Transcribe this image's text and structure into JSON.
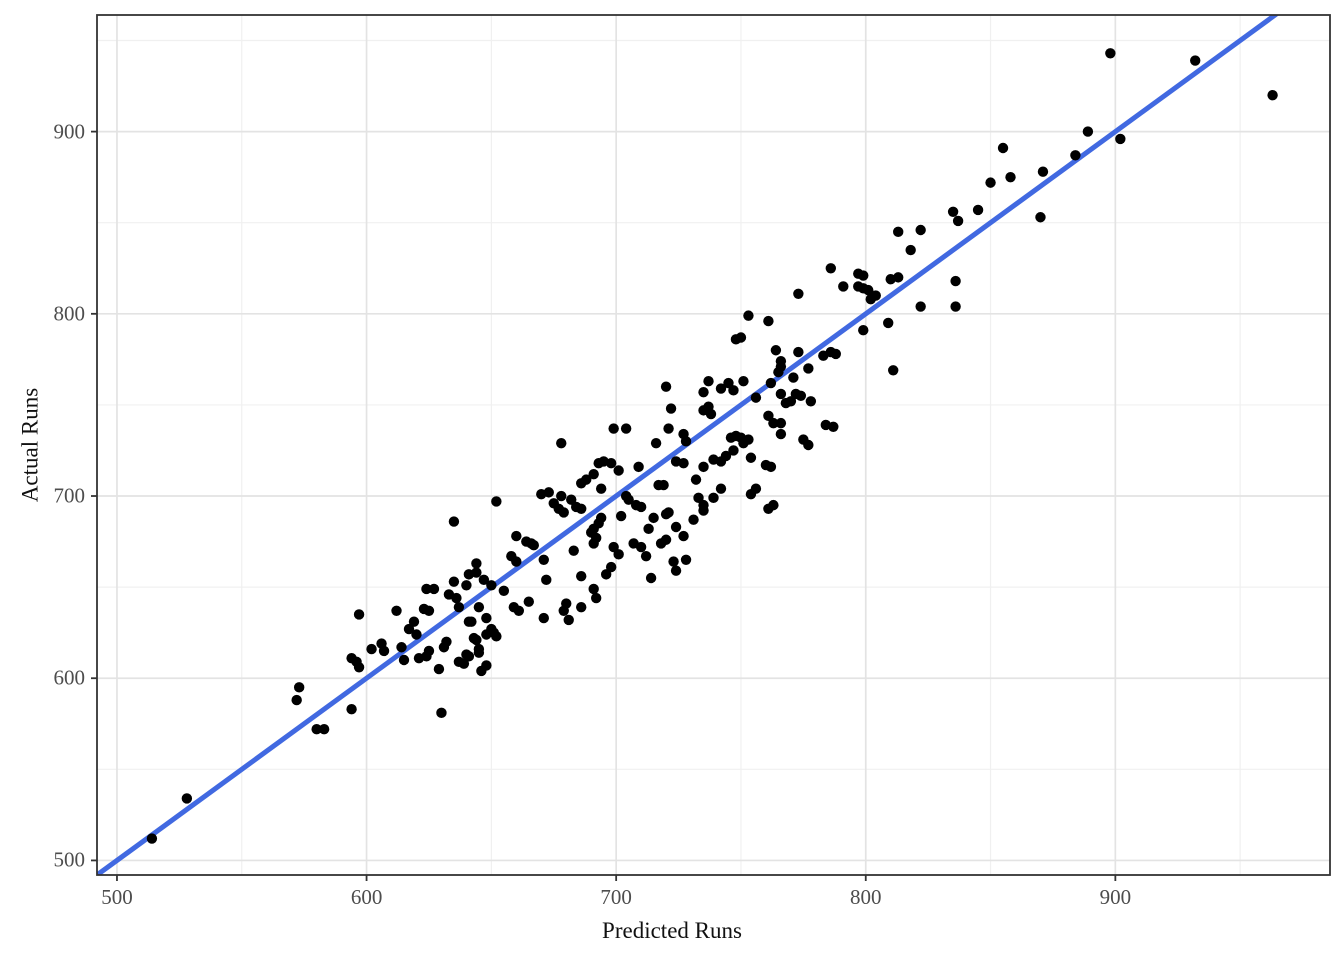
{
  "chart_data": {
    "type": "scatter",
    "title": "",
    "xlabel": "Predicted Runs",
    "ylabel": "Actual Runs",
    "xlim": [
      492,
      986
    ],
    "ylim": [
      492,
      964
    ],
    "x_ticks": [
      500,
      600,
      700,
      800,
      900
    ],
    "y_ticks": [
      500,
      600,
      700,
      800,
      900
    ],
    "x_minor_ticks": [
      550,
      650,
      750,
      850,
      950
    ],
    "y_minor_ticks": [
      550,
      650,
      750,
      850,
      950
    ],
    "grid": "major+minor",
    "legend": "none",
    "colors": {
      "point": "#000000",
      "line": "#4169E1",
      "major_grid": "#e3e3e3",
      "minor_grid": "#f0f0f0",
      "panel_border": "#333333",
      "tick_mark": "#333333",
      "tick_text": "#4d4d4d",
      "background": "#ffffff"
    },
    "reference_line": {
      "type": "abline",
      "intercept": 0,
      "slope": 1
    },
    "points": [
      [
        514,
        512
      ],
      [
        528,
        534
      ],
      [
        572,
        588
      ],
      [
        573,
        595
      ],
      [
        580,
        572
      ],
      [
        583,
        572
      ],
      [
        594,
        583
      ],
      [
        594,
        611
      ],
      [
        596,
        609
      ],
      [
        597,
        606
      ],
      [
        597,
        635
      ],
      [
        602,
        616
      ],
      [
        606,
        619
      ],
      [
        607,
        615
      ],
      [
        612,
        637
      ],
      [
        614,
        617
      ],
      [
        615,
        610
      ],
      [
        617,
        627
      ],
      [
        619,
        631
      ],
      [
        620,
        624
      ],
      [
        621,
        611
      ],
      [
        623,
        638
      ],
      [
        624,
        649
      ],
      [
        624,
        612
      ],
      [
        625,
        637
      ],
      [
        625,
        615
      ],
      [
        627,
        649
      ],
      [
        629,
        605
      ],
      [
        630,
        581
      ],
      [
        631,
        617
      ],
      [
        632,
        620
      ],
      [
        633,
        646
      ],
      [
        635,
        653
      ],
      [
        635,
        686
      ],
      [
        636,
        644
      ],
      [
        637,
        639
      ],
      [
        637,
        609
      ],
      [
        639,
        608
      ],
      [
        640,
        613
      ],
      [
        640,
        651
      ],
      [
        641,
        657
      ],
      [
        641,
        631
      ],
      [
        641,
        612
      ],
      [
        642,
        631
      ],
      [
        643,
        622
      ],
      [
        644,
        663
      ],
      [
        644,
        658
      ],
      [
        644,
        621
      ],
      [
        645,
        639
      ],
      [
        645,
        616
      ],
      [
        645,
        614
      ],
      [
        646,
        604
      ],
      [
        647,
        654
      ],
      [
        648,
        633
      ],
      [
        648,
        624
      ],
      [
        648,
        607
      ],
      [
        650,
        651
      ],
      [
        650,
        627
      ],
      [
        651,
        625
      ],
      [
        652,
        623
      ],
      [
        652,
        697
      ],
      [
        655,
        648
      ],
      [
        658,
        667
      ],
      [
        659,
        639
      ],
      [
        660,
        664
      ],
      [
        660,
        678
      ],
      [
        661,
        637
      ],
      [
        664,
        675
      ],
      [
        665,
        642
      ],
      [
        666,
        674
      ],
      [
        667,
        673
      ],
      [
        670,
        701
      ],
      [
        671,
        665
      ],
      [
        671,
        633
      ],
      [
        672,
        654
      ],
      [
        673,
        702
      ],
      [
        675,
        696
      ],
      [
        677,
        693
      ],
      [
        678,
        700
      ],
      [
        678,
        729
      ],
      [
        679,
        691
      ],
      [
        679,
        637
      ],
      [
        680,
        641
      ],
      [
        681,
        632
      ],
      [
        682,
        698
      ],
      [
        683,
        670
      ],
      [
        684,
        694
      ],
      [
        686,
        707
      ],
      [
        686,
        693
      ],
      [
        686,
        656
      ],
      [
        686,
        639
      ],
      [
        688,
        709
      ],
      [
        690,
        680
      ],
      [
        691,
        712
      ],
      [
        691,
        682
      ],
      [
        691,
        674
      ],
      [
        691,
        649
      ],
      [
        692,
        677
      ],
      [
        692,
        644
      ],
      [
        693,
        718
      ],
      [
        693,
        685
      ],
      [
        694,
        704
      ],
      [
        694,
        688
      ],
      [
        695,
        719
      ],
      [
        696,
        657
      ],
      [
        698,
        718
      ],
      [
        698,
        661
      ],
      [
        699,
        737
      ],
      [
        699,
        672
      ],
      [
        701,
        714
      ],
      [
        701,
        668
      ],
      [
        702,
        689
      ],
      [
        704,
        737
      ],
      [
        704,
        700
      ],
      [
        705,
        698
      ],
      [
        707,
        674
      ],
      [
        708,
        695
      ],
      [
        709,
        716
      ],
      [
        710,
        694
      ],
      [
        710,
        672
      ],
      [
        712,
        667
      ],
      [
        713,
        682
      ],
      [
        714,
        655
      ],
      [
        715,
        688
      ],
      [
        716,
        729
      ],
      [
        717,
        706
      ],
      [
        718,
        674
      ],
      [
        719,
        706
      ],
      [
        720,
        760
      ],
      [
        720,
        690
      ],
      [
        720,
        676
      ],
      [
        721,
        737
      ],
      [
        721,
        691
      ],
      [
        722,
        748
      ],
      [
        723,
        664
      ],
      [
        724,
        719
      ],
      [
        724,
        683
      ],
      [
        724,
        659
      ],
      [
        727,
        734
      ],
      [
        727,
        718
      ],
      [
        727,
        678
      ],
      [
        728,
        730
      ],
      [
        728,
        665
      ],
      [
        731,
        687
      ],
      [
        732,
        709
      ],
      [
        733,
        699
      ],
      [
        735,
        757
      ],
      [
        735,
        747
      ],
      [
        735,
        716
      ],
      [
        735,
        695
      ],
      [
        735,
        692
      ],
      [
        737,
        763
      ],
      [
        737,
        749
      ],
      [
        738,
        745
      ],
      [
        739,
        720
      ],
      [
        739,
        699
      ],
      [
        742,
        759
      ],
      [
        742,
        719
      ],
      [
        742,
        704
      ],
      [
        744,
        722
      ],
      [
        745,
        762
      ],
      [
        746,
        732
      ],
      [
        747,
        758
      ],
      [
        747,
        725
      ],
      [
        748,
        733
      ],
      [
        748,
        786
      ],
      [
        750,
        787
      ],
      [
        750,
        732
      ],
      [
        751,
        763
      ],
      [
        751,
        729
      ],
      [
        753,
        799
      ],
      [
        753,
        731
      ],
      [
        754,
        721
      ],
      [
        754,
        701
      ],
      [
        756,
        754
      ],
      [
        756,
        704
      ],
      [
        760,
        717
      ],
      [
        761,
        796
      ],
      [
        761,
        744
      ],
      [
        761,
        693
      ],
      [
        762,
        762
      ],
      [
        762,
        716
      ],
      [
        763,
        740
      ],
      [
        763,
        695
      ],
      [
        764,
        780
      ],
      [
        765,
        768
      ],
      [
        766,
        774
      ],
      [
        766,
        771
      ],
      [
        766,
        756
      ],
      [
        766,
        740
      ],
      [
        766,
        734
      ],
      [
        768,
        751
      ],
      [
        770,
        752
      ],
      [
        771,
        765
      ],
      [
        772,
        756
      ],
      [
        773,
        811
      ],
      [
        773,
        779
      ],
      [
        774,
        755
      ],
      [
        775,
        731
      ],
      [
        777,
        770
      ],
      [
        777,
        728
      ],
      [
        778,
        752
      ],
      [
        783,
        777
      ],
      [
        784,
        739
      ],
      [
        786,
        825
      ],
      [
        786,
        779
      ],
      [
        787,
        738
      ],
      [
        788,
        778
      ],
      [
        791,
        815
      ],
      [
        797,
        822
      ],
      [
        797,
        815
      ],
      [
        799,
        821
      ],
      [
        799,
        814
      ],
      [
        799,
        791
      ],
      [
        801,
        813
      ],
      [
        802,
        808
      ],
      [
        804,
        810
      ],
      [
        809,
        795
      ],
      [
        810,
        819
      ],
      [
        811,
        769
      ],
      [
        813,
        845
      ],
      [
        813,
        820
      ],
      [
        818,
        835
      ],
      [
        822,
        846
      ],
      [
        822,
        804
      ],
      [
        835,
        856
      ],
      [
        836,
        818
      ],
      [
        836,
        804
      ],
      [
        837,
        851
      ],
      [
        845,
        857
      ],
      [
        850,
        872
      ],
      [
        855,
        891
      ],
      [
        858,
        875
      ],
      [
        870,
        853
      ],
      [
        871,
        878
      ],
      [
        884,
        887
      ],
      [
        889,
        900
      ],
      [
        898,
        943
      ],
      [
        902,
        896
      ],
      [
        932,
        939
      ],
      [
        963,
        920
      ]
    ]
  }
}
